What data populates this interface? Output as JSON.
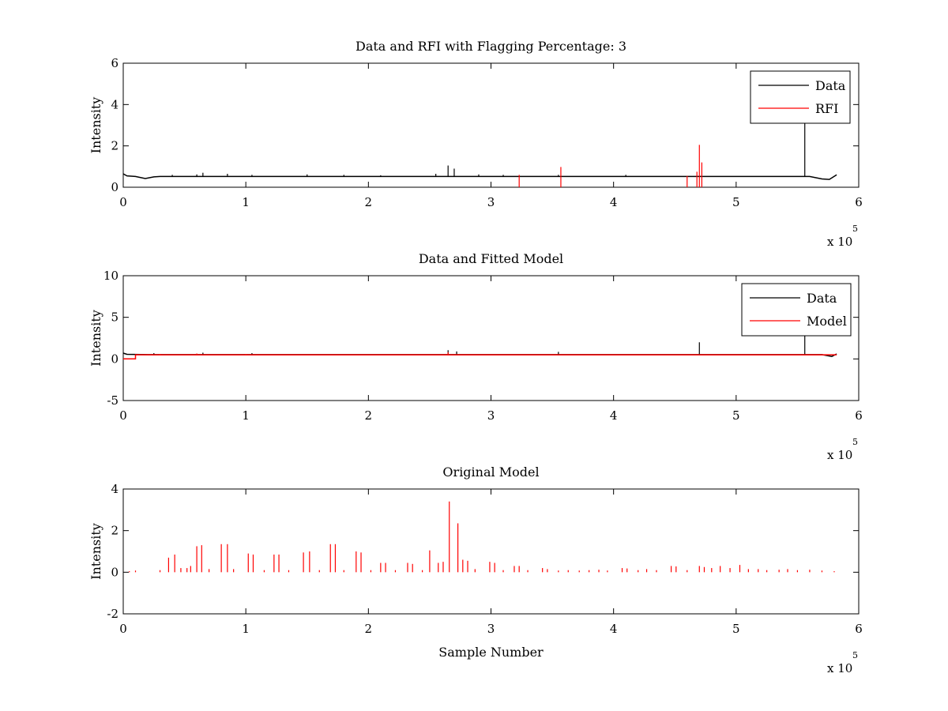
{
  "colors": {
    "data": "#000000",
    "rfi": "#ff0000",
    "model": "#ff0000",
    "background": "#ffffff"
  },
  "chart_data": [
    {
      "type": "line",
      "title": "Data and RFI with Flagging Percentage: 3",
      "ylabel": "Intensity",
      "xlabel": "",
      "xlim": [
        0,
        6
      ],
      "ylim": [
        0,
        6
      ],
      "xticks": [
        "0",
        "1",
        "2",
        "3",
        "4",
        "5",
        "6"
      ],
      "yticks": [
        "0",
        "2",
        "4",
        "6"
      ],
      "x_exponent_base": "x 10",
      "x_exponent_power": "5",
      "legend": {
        "placement": "top-right",
        "entries": [
          "Data",
          "RFI"
        ]
      },
      "series": [
        {
          "name": "Data",
          "color": "#000000",
          "baseline": 0.52,
          "segments": [
            [
              0,
              0.65
            ],
            [
              0.03,
              0.55
            ],
            [
              0.1,
              0.52
            ],
            [
              0.18,
              0.42
            ],
            [
              0.25,
              0.5
            ],
            [
              0.3,
              0.52
            ],
            [
              5.6,
              0.52
            ],
            [
              5.7,
              0.4
            ],
            [
              5.76,
              0.38
            ],
            [
              5.82,
              0.6
            ]
          ],
          "spikes": [
            [
              0.4,
              0.6
            ],
            [
              0.6,
              0.62
            ],
            [
              0.65,
              0.7
            ],
            [
              0.85,
              0.65
            ],
            [
              1.05,
              0.6
            ],
            [
              1.5,
              0.62
            ],
            [
              1.8,
              0.6
            ],
            [
              2.1,
              0.58
            ],
            [
              2.55,
              0.65
            ],
            [
              2.65,
              1.05
            ],
            [
              2.7,
              0.9
            ],
            [
              2.9,
              0.62
            ],
            [
              3.1,
              0.6
            ],
            [
              3.55,
              0.6
            ],
            [
              4.1,
              0.6
            ],
            [
              5.56,
              3.2
            ]
          ]
        },
        {
          "name": "RFI",
          "color": "#ff0000",
          "spikes": [
            [
              3.23,
              0.6
            ],
            [
              3.57,
              0.98
            ],
            [
              4.6,
              0.55
            ],
            [
              4.68,
              0.75
            ],
            [
              4.7,
              2.05
            ],
            [
              4.72,
              1.2
            ]
          ]
        }
      ]
    },
    {
      "type": "line",
      "title": "Data and Fitted Model",
      "ylabel": "Intensity",
      "xlabel": "",
      "xlim": [
        0,
        6
      ],
      "ylim": [
        -5,
        10
      ],
      "xticks": [
        "0",
        "1",
        "2",
        "3",
        "4",
        "5",
        "6"
      ],
      "yticks": [
        "-5",
        "0",
        "5",
        "10"
      ],
      "x_exponent_base": "x 10",
      "x_exponent_power": "5",
      "legend": {
        "placement": "top-right",
        "entries": [
          "Data",
          "Model"
        ]
      },
      "series": [
        {
          "name": "Data",
          "color": "#000000",
          "baseline": 0.52,
          "segments": [
            [
              0,
              0.7
            ],
            [
              0.03,
              0.55
            ],
            [
              0.2,
              0.52
            ],
            [
              5.7,
              0.52
            ],
            [
              5.78,
              0.3
            ],
            [
              5.82,
              0.6
            ]
          ],
          "spikes": [
            [
              0.25,
              0.7
            ],
            [
              0.65,
              0.75
            ],
            [
              1.05,
              0.7
            ],
            [
              2.65,
              1.05
            ],
            [
              2.72,
              0.9
            ],
            [
              3.55,
              0.85
            ],
            [
              4.7,
              2.0
            ],
            [
              5.56,
              3.2
            ]
          ]
        },
        {
          "name": "Model",
          "color": "#ff0000",
          "baseline": 0.5,
          "segments": [
            [
              0,
              0.0
            ],
            [
              0.1,
              0.0
            ],
            [
              0.1,
              0.5
            ],
            [
              5.82,
              0.5
            ]
          ],
          "spikes": [
            [
              0.3,
              0.6
            ],
            [
              0.6,
              0.65
            ],
            [
              1.0,
              0.6
            ],
            [
              2.65,
              0.8
            ]
          ]
        }
      ]
    },
    {
      "type": "line",
      "title": "Original Model",
      "ylabel": "Intensity",
      "xlabel": "Sample Number",
      "xlim": [
        0,
        6
      ],
      "ylim": [
        -2,
        4
      ],
      "xticks": [
        "0",
        "1",
        "2",
        "3",
        "4",
        "5",
        "6"
      ],
      "yticks": [
        "-2",
        "0",
        "2",
        "4"
      ],
      "x_exponent_base": "x 10",
      "x_exponent_power": "5",
      "series": [
        {
          "name": "",
          "color": "#ff0000",
          "baseline": 0,
          "spikes": [
            [
              0.05,
              0.05
            ],
            [
              0.1,
              0.08
            ],
            [
              0.3,
              0.1
            ],
            [
              0.37,
              0.7
            ],
            [
              0.42,
              0.85
            ],
            [
              0.47,
              0.2
            ],
            [
              0.52,
              0.2
            ],
            [
              0.55,
              0.3
            ],
            [
              0.6,
              1.25
            ],
            [
              0.64,
              1.3
            ],
            [
              0.7,
              0.15
            ],
            [
              0.8,
              1.35
            ],
            [
              0.85,
              1.35
            ],
            [
              0.9,
              0.15
            ],
            [
              1.02,
              0.9
            ],
            [
              1.06,
              0.85
            ],
            [
              1.15,
              0.1
            ],
            [
              1.23,
              0.85
            ],
            [
              1.27,
              0.85
            ],
            [
              1.35,
              0.1
            ],
            [
              1.47,
              0.95
            ],
            [
              1.52,
              1.0
            ],
            [
              1.6,
              0.1
            ],
            [
              1.69,
              1.35
            ],
            [
              1.73,
              1.35
            ],
            [
              1.8,
              0.1
            ],
            [
              1.9,
              1.0
            ],
            [
              1.94,
              0.95
            ],
            [
              2.02,
              0.1
            ],
            [
              2.1,
              0.45
            ],
            [
              2.14,
              0.45
            ],
            [
              2.22,
              0.1
            ],
            [
              2.32,
              0.45
            ],
            [
              2.36,
              0.4
            ],
            [
              2.44,
              0.1
            ],
            [
              2.5,
              1.05
            ],
            [
              2.57,
              0.45
            ],
            [
              2.61,
              0.5
            ],
            [
              2.66,
              3.4
            ],
            [
              2.73,
              2.35
            ],
            [
              2.77,
              0.6
            ],
            [
              2.81,
              0.55
            ],
            [
              2.87,
              0.15
            ],
            [
              2.99,
              0.5
            ],
            [
              3.03,
              0.45
            ],
            [
              3.1,
              0.1
            ],
            [
              3.19,
              0.3
            ],
            [
              3.23,
              0.3
            ],
            [
              3.3,
              0.1
            ],
            [
              3.42,
              0.2
            ],
            [
              3.46,
              0.15
            ],
            [
              3.55,
              0.08
            ],
            [
              3.63,
              0.1
            ],
            [
              3.72,
              0.08
            ],
            [
              3.8,
              0.1
            ],
            [
              3.88,
              0.12
            ],
            [
              3.95,
              0.08
            ],
            [
              4.07,
              0.2
            ],
            [
              4.11,
              0.18
            ],
            [
              4.2,
              0.1
            ],
            [
              4.27,
              0.15
            ],
            [
              4.35,
              0.1
            ],
            [
              4.47,
              0.3
            ],
            [
              4.51,
              0.28
            ],
            [
              4.6,
              0.1
            ],
            [
              4.7,
              0.3
            ],
            [
              4.74,
              0.25
            ],
            [
              4.8,
              0.2
            ],
            [
              4.87,
              0.3
            ],
            [
              4.95,
              0.2
            ],
            [
              5.03,
              0.35
            ],
            [
              5.1,
              0.15
            ],
            [
              5.18,
              0.15
            ],
            [
              5.25,
              0.1
            ],
            [
              5.35,
              0.12
            ],
            [
              5.42,
              0.15
            ],
            [
              5.5,
              0.1
            ],
            [
              5.6,
              0.12
            ],
            [
              5.7,
              0.08
            ],
            [
              5.8,
              0.05
            ]
          ]
        }
      ]
    }
  ]
}
